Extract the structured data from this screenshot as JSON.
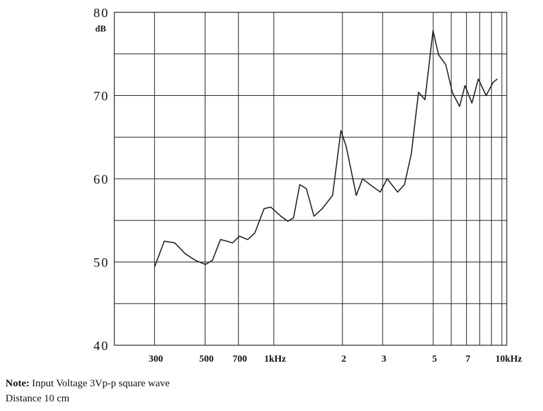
{
  "chart_data": {
    "type": "line",
    "x_scale": "log",
    "y_unit": "dB",
    "x": [
      300,
      331,
      368,
      409,
      453,
      502,
      538,
      584,
      624,
      660,
      706,
      769,
      826,
      906,
      970,
      1075,
      1153,
      1220,
      1300,
      1390,
      1500,
      1630,
      1810,
      1970,
      2080,
      2300,
      2450,
      2640,
      2930,
      3140,
      3490,
      3740,
      4010,
      4310,
      4600,
      4990,
      5280,
      5680,
      6060,
      6520,
      6890,
      7390,
      7880,
      8530,
      9160,
      9560
    ],
    "series": [
      {
        "color": "#222222",
        "values": [
          49.4,
          52.5,
          52.3,
          51.0,
          50.2,
          49.7,
          50.2,
          52.7,
          52.5,
          52.3,
          53.1,
          52.7,
          53.5,
          56.4,
          56.6,
          55.5,
          54.9,
          55.3,
          59.3,
          58.8,
          55.5,
          56.4,
          58.0,
          65.8,
          63.8,
          58.0,
          60,
          59.3,
          58.4,
          60,
          58.4,
          59.3,
          63.0,
          70.4,
          69.5,
          77.8,
          74.9,
          73.7,
          70.4,
          68.7,
          71.2,
          69.1,
          72.0,
          70,
          71.6,
          72.0
        ]
      }
    ],
    "xlim": [
      200,
      10500
    ],
    "ylim": [
      40,
      80
    ],
    "xticks": [
      300,
      500,
      700,
      {
        "value": 1000,
        "label": "1kHz"
      },
      {
        "value": 2000,
        "label": "2"
      },
      {
        "value": 3000,
        "label": "3"
      },
      {
        "value": 5000,
        "label": "5"
      },
      {
        "value": 7000,
        "label": "7"
      },
      {
        "value": 10000,
        "label": "10kHz"
      }
    ],
    "x_minor_grid": [
      6000,
      8000,
      9000
    ],
    "yticks": [
      40,
      50,
      60,
      70,
      80
    ],
    "y_minor_grid": [
      45,
      55,
      65,
      75
    ],
    "grid": true
  },
  "note": {
    "label": "Note:",
    "line1": "Input Voltage 3Vp-p square wave",
    "line2": "Distance 10 cm"
  }
}
